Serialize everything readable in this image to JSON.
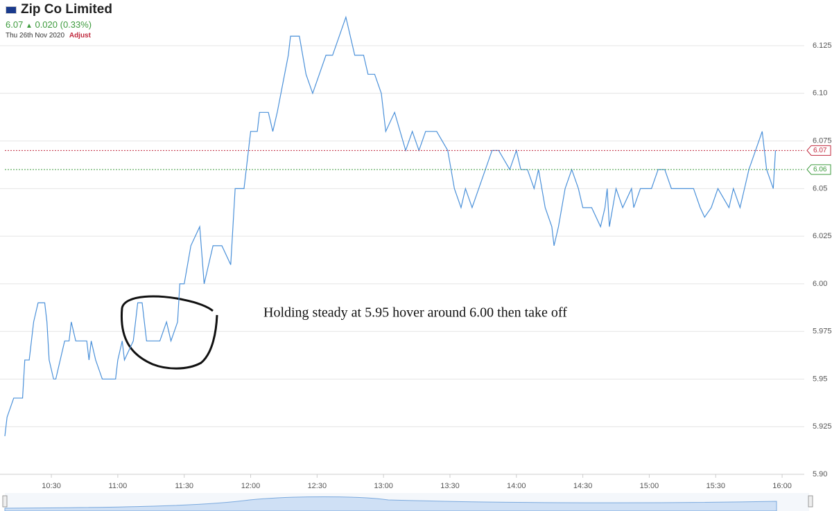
{
  "header": {
    "title": "Zip Co Limited",
    "price": "6.07",
    "change": "0.020 (0.33%)",
    "date": "Thu 26th Nov 2020",
    "adjust": "Adjust"
  },
  "chart_data": {
    "type": "line",
    "x": [
      "10:09",
      "10:10",
      "10:13",
      "10:17",
      "10:18",
      "10:20",
      "10:22",
      "10:24",
      "10:27",
      "10:28",
      "10:29",
      "10:31",
      "10:32",
      "10:34",
      "10:36",
      "10:38",
      "10:39",
      "10:41",
      "10:46",
      "10:47",
      "10:48",
      "10:50",
      "10:53",
      "10:59",
      "11:00",
      "11:02",
      "11:03",
      "11:07",
      "11:09",
      "11:11",
      "11:13",
      "11:19",
      "11:22",
      "11:24",
      "11:27",
      "11:28",
      "11:30",
      "11:33",
      "11:37",
      "11:39",
      "11:43",
      "11:47",
      "11:51",
      "11:53",
      "11:57",
      "12:00",
      "12:03",
      "12:04",
      "12:08",
      "12:10",
      "12:12",
      "12:17",
      "12:18",
      "12:22",
      "12:25",
      "12:28",
      "12:31",
      "12:34",
      "12:37",
      "12:40",
      "12:43",
      "12:47",
      "12:51",
      "12:53",
      "12:56",
      "12:59",
      "13:01",
      "13:05",
      "13:10",
      "13:13",
      "13:16",
      "13:19",
      "13:24",
      "13:29",
      "13:32",
      "13:35",
      "13:37",
      "13:40",
      "13:43",
      "13:46",
      "13:49",
      "13:52",
      "13:57",
      "14:00",
      "14:02",
      "14:05",
      "14:08",
      "14:10",
      "14:13",
      "14:16",
      "14:17",
      "14:19",
      "14:22",
      "14:25",
      "14:28",
      "14:30",
      "14:34",
      "14:38",
      "14:40",
      "14:41",
      "14:42",
      "14:45",
      "14:48",
      "14:52",
      "14:53",
      "14:56",
      "15:01",
      "15:04",
      "15:07",
      "15:10",
      "15:20",
      "15:23",
      "15:25",
      "15:28",
      "15:31",
      "15:36",
      "15:38",
      "15:41",
      "15:45",
      "15:48",
      "15:51",
      "15:53",
      "15:56",
      "15:57"
    ],
    "values": [
      5.92,
      5.93,
      5.94,
      5.94,
      5.96,
      5.96,
      5.98,
      5.99,
      5.99,
      5.98,
      5.96,
      5.95,
      5.95,
      5.96,
      5.97,
      5.97,
      5.98,
      5.97,
      5.97,
      5.96,
      5.97,
      5.96,
      5.95,
      5.95,
      5.96,
      5.97,
      5.96,
      5.97,
      5.99,
      5.99,
      5.97,
      5.97,
      5.98,
      5.97,
      5.98,
      6.0,
      6.0,
      6.02,
      6.03,
      6.0,
      6.02,
      6.02,
      6.01,
      6.05,
      6.05,
      6.08,
      6.08,
      6.09,
      6.09,
      6.08,
      6.09,
      6.12,
      6.13,
      6.13,
      6.11,
      6.1,
      6.11,
      6.12,
      6.12,
      6.13,
      6.14,
      6.12,
      6.12,
      6.11,
      6.11,
      6.1,
      6.08,
      6.09,
      6.07,
      6.08,
      6.07,
      6.08,
      6.08,
      6.07,
      6.05,
      6.04,
      6.05,
      6.04,
      6.05,
      6.06,
      6.07,
      6.07,
      6.06,
      6.07,
      6.06,
      6.06,
      6.05,
      6.06,
      6.04,
      6.03,
      6.02,
      6.03,
      6.05,
      6.06,
      6.05,
      6.04,
      6.04,
      6.03,
      6.04,
      6.05,
      6.03,
      6.05,
      6.04,
      6.05,
      6.04,
      6.05,
      6.05,
      6.06,
      6.06,
      6.05,
      6.05,
      6.04,
      6.035,
      6.04,
      6.05,
      6.04,
      6.05,
      6.04,
      6.06,
      6.07,
      6.08,
      6.06,
      6.05,
      6.07
    ],
    "color": "#4a90d9",
    "xlim": [
      "10:09",
      "16:10"
    ],
    "xticks": [
      "10:30",
      "11:00",
      "11:30",
      "12:00",
      "12:30",
      "13:00",
      "13:30",
      "14:00",
      "14:30",
      "15:00",
      "15:30",
      "16:00"
    ],
    "ylim": [
      5.9,
      6.149
    ],
    "yticks": [
      {
        "value": 5.9,
        "label": "5.90"
      },
      5.925,
      5.95,
      5.975,
      {
        "value": 6.0,
        "label": "6.00"
      },
      6.025,
      6.05,
      6.075,
      {
        "value": 6.1,
        "label": "6.10"
      },
      6.125
    ],
    "grid": true,
    "price_lines": [
      {
        "value": 6.07,
        "color": "#c0283c"
      },
      {
        "value": 6.06,
        "color": "#3c9a3c"
      }
    ],
    "annotation": "Holding steady at 5.95 hover around 6.00 then take off"
  }
}
